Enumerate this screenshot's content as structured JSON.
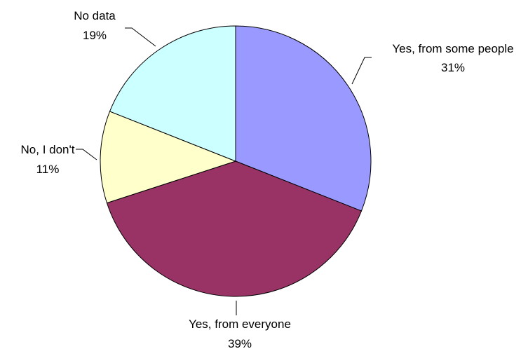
{
  "chart_data": {
    "type": "pie",
    "title": "",
    "start_angle_deg": 0,
    "direction": "clockwise",
    "slices": [
      {
        "label": "Yes, from some people",
        "percent_label": "31%",
        "value": 31,
        "color": "#9999ff"
      },
      {
        "label": "Yes, from everyone",
        "percent_label": "39%",
        "value": 39,
        "color": "#993366"
      },
      {
        "label": "No, I don't",
        "percent_label": "11%",
        "value": 11,
        "color": "#ffffcc"
      },
      {
        "label": "No data",
        "percent_label": "19%",
        "value": 19,
        "color": "#ccffff"
      }
    ]
  }
}
